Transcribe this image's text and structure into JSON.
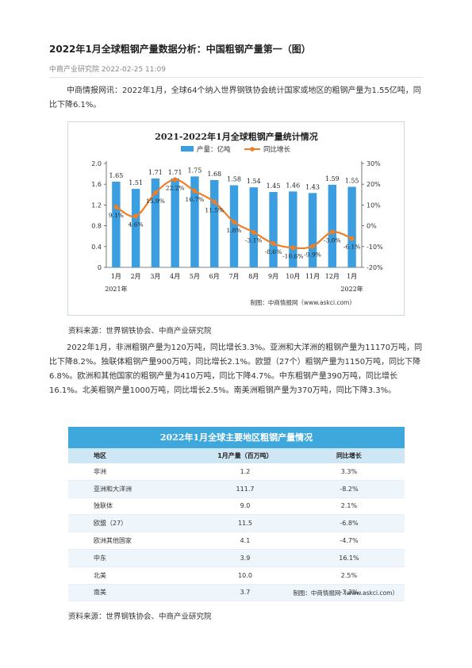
{
  "article": {
    "title": "2022年1月全球粗钢产量数据分析：中国粗钢产量第一（图）",
    "meta": "中商产业研究院 2022-02-25 11:09",
    "intro": "中商情报网讯：2022年1月，全球64个纳入世界钢铁协会统计国家或地区的粗钢产量为1.55亿吨，同比下降6.1%。",
    "source1": "资料来源：世界钢铁协会、中商产业研究院",
    "body": "2022年1月，非洲粗钢产量为120万吨，同比增长3.3%。亚洲和大洋洲的粗钢产量为11170万吨，同比下降8.2%。独联体粗钢产量900万吨，同比增长2.1%。欧盟（27个）粗钢产量为1150万吨，同比下降6.8%。欧洲和其他国家的粗钢产量为410万吨，同比下降4.7%。中东粗钢产量390万吨，同比增长16.1%。北美粗钢产量1000万吨，同比增长2.5%。南美洲粗钢产量为370万吨，同比下降3.3%。",
    "source2": "资料来源：世界钢铁协会、中商产业研究院"
  },
  "chart_data": {
    "type": "bar",
    "title": "2021-2022年1月全球粗钢产量统计情况",
    "categories": [
      "1月",
      "2月",
      "3月",
      "4月",
      "5月",
      "6月",
      "7月",
      "8月",
      "9月",
      "10月",
      "11月",
      "12月",
      "1月"
    ],
    "year_labels": {
      "left": "2021年",
      "right": "2022年"
    },
    "series": [
      {
        "name": "产量：亿吨",
        "type": "bar",
        "axis": "left",
        "color": "#3a9ee0",
        "values": [
          1.65,
          1.51,
          1.71,
          1.71,
          1.75,
          1.68,
          1.58,
          1.54,
          1.45,
          1.46,
          1.43,
          1.59,
          1.55
        ],
        "labels": [
          "1.65",
          "1.51",
          "1.71",
          "1.71",
          "1.75",
          "1.68",
          "1.58",
          "1.54",
          "1.45",
          "1.46",
          "1.43",
          "1.59",
          "1.55"
        ]
      },
      {
        "name": "同比增长",
        "type": "line",
        "axis": "right",
        "color": "#f07e25",
        "values": [
          9.1,
          4.6,
          15.9,
          22.2,
          16.7,
          11.5,
          1.8,
          -3.1,
          -8.6,
          -10.6,
          -9.9,
          -3.0,
          -6.1
        ],
        "labels": [
          "9.1%",
          "4.6%",
          "15.9%",
          "22.2%",
          "16.7%",
          "11.5%",
          "1.8%",
          "-3.1%",
          "-8.6%",
          "-10.6%",
          "-9.9%",
          "-3.0%",
          "-6.1%"
        ]
      }
    ],
    "left_axis": {
      "ylim": [
        0,
        2.0
      ],
      "ticks": [
        "0",
        "0.4",
        "0.8",
        "1.2",
        "1.6",
        "2.0"
      ]
    },
    "right_axis": {
      "ylim": [
        -20,
        30
      ],
      "ticks": [
        "-20%",
        "-10%",
        "0%",
        "10%",
        "20%",
        "30%"
      ]
    },
    "legend": "top-center",
    "credit": "制图：中商情报网（www.askci.com）"
  },
  "table": {
    "title": "2022年1月全球主要地区粗钢产量情况",
    "headers": [
      "地区",
      "1月产量（百万吨）",
      "同比增长"
    ],
    "rows": [
      [
        "非洲",
        "1.2",
        "3.3%"
      ],
      [
        "亚洲和大洋洲",
        "111.7",
        "-8.2%"
      ],
      [
        "独联体",
        "9.0",
        "2.1%"
      ],
      [
        "欧盟（27）",
        "11.5",
        "-6.8%"
      ],
      [
        "欧洲其他国家",
        "4.1",
        "-4.7%"
      ],
      [
        "中东",
        "3.9",
        "16.1%"
      ],
      [
        "北美",
        "10.0",
        "2.5%"
      ],
      [
        "南美",
        "3.7",
        "-3.3%"
      ]
    ],
    "credit": "制图：中商情报网（www.askci.com）"
  }
}
